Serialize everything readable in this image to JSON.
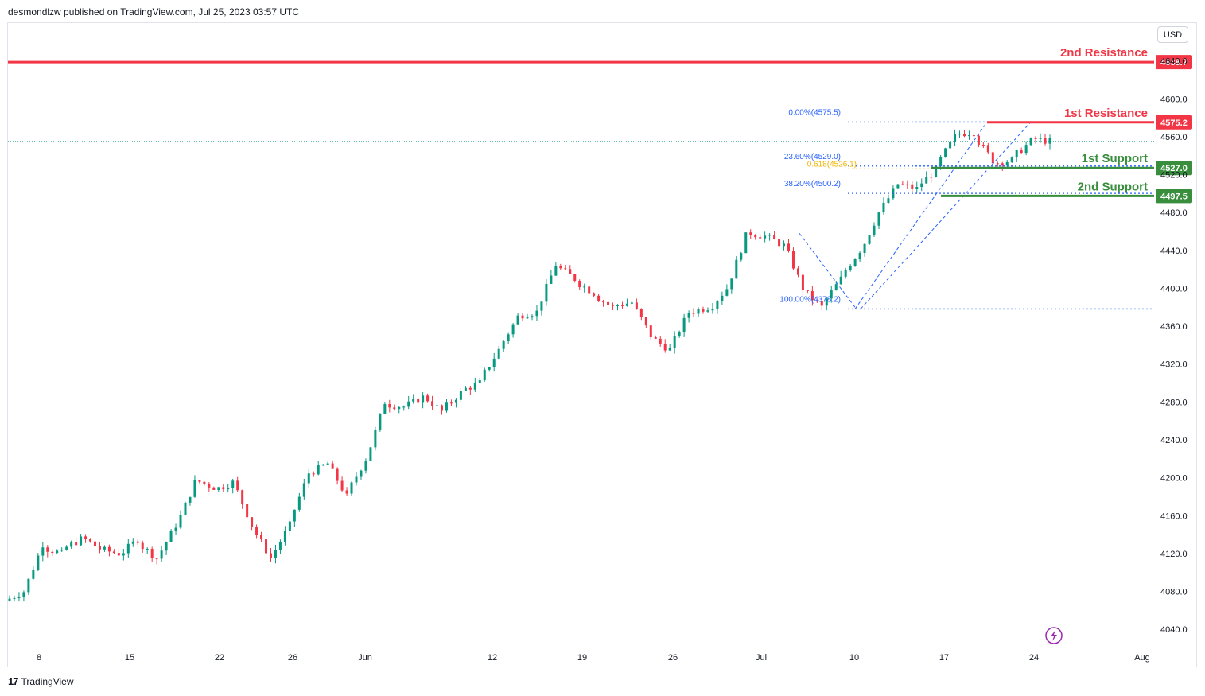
{
  "header": {
    "publisher": "desmondlzw published on TradingView.com, Jul 25, 2023 03:57 UTC"
  },
  "footer": {
    "brand": "TradingView",
    "logo_glyph": "17"
  },
  "currency_button": "USD",
  "colors": {
    "up": "#089981",
    "down": "#f23645",
    "resistance": "#f23645",
    "support": "#388e3c",
    "fib": "#2962ff",
    "fib_golden": "#f0b400"
  },
  "chart_data": {
    "type": "candlestick",
    "y_axis": {
      "min": 4020,
      "max": 4680,
      "ticks": [
        "4040.0",
        "4080.0",
        "4120.0",
        "4160.0",
        "4200.0",
        "4240.0",
        "4280.0",
        "4320.0",
        "4360.0",
        "4400.0",
        "4440.0",
        "4480.0",
        "4520.0",
        "4560.0",
        "4600.0",
        "4640.0"
      ]
    },
    "x_axis": {
      "labels": [
        "8",
        "15",
        "22",
        "26",
        "Jun",
        "12",
        "19",
        "26",
        "Jul",
        "10",
        "17",
        "24",
        "Aug"
      ]
    },
    "levels": [
      {
        "name": "2nd Resistance",
        "value": 4638.7,
        "tag": "4638.7",
        "kind": "resistance"
      },
      {
        "name": "1st Resistance",
        "value": 4575.2,
        "tag": "4575.2",
        "kind": "resistance"
      },
      {
        "name": "1st Support",
        "value": 4527.0,
        "tag": "4527.0",
        "kind": "support"
      },
      {
        "name": "2nd Support",
        "value": 4497.5,
        "tag": "4497.5",
        "kind": "support"
      }
    ],
    "fib_levels": [
      {
        "label": "0.00%(4575.5)",
        "value": 4575.5
      },
      {
        "label": "23.60%(4529.0)",
        "value": 4529.0
      },
      {
        "label": "38.20%(4500.2)",
        "value": 4500.2
      },
      {
        "label": "100.00%(4378.2)",
        "value": 4378.2
      }
    ],
    "fib_golden": {
      "label": "0.618(4526.1)",
      "value": 4526.1
    },
    "last_price": 4555,
    "series": [
      {
        "x": "May 5",
        "v": 4080
      },
      {
        "x": "May 8",
        "v": 4130
      },
      {
        "x": "May 9",
        "v": 4120
      },
      {
        "x": "May 10",
        "v": 4135
      },
      {
        "x": "May 11",
        "v": 4125
      },
      {
        "x": "May 12",
        "v": 4120
      },
      {
        "x": "May 15",
        "v": 4135
      },
      {
        "x": "May 16",
        "v": 4115
      },
      {
        "x": "May 17",
        "v": 4150
      },
      {
        "x": "May 18",
        "v": 4195
      },
      {
        "x": "May 19",
        "v": 4190
      },
      {
        "x": "May 22",
        "v": 4195
      },
      {
        "x": "May 23",
        "v": 4150
      },
      {
        "x": "May 24",
        "v": 4115
      },
      {
        "x": "May 25",
        "v": 4150
      },
      {
        "x": "May 26",
        "v": 4205
      },
      {
        "x": "May 30",
        "v": 4215
      },
      {
        "x": "May 31",
        "v": 4180
      },
      {
        "x": "Jun 1",
        "v": 4220
      },
      {
        "x": "Jun 2",
        "v": 4280
      },
      {
        "x": "Jun 5",
        "v": 4275
      },
      {
        "x": "Jun 6",
        "v": 4285
      },
      {
        "x": "Jun 7",
        "v": 4270
      },
      {
        "x": "Jun 8",
        "v": 4290
      },
      {
        "x": "Jun 9",
        "v": 4300
      },
      {
        "x": "Jun 12",
        "v": 4335
      },
      {
        "x": "Jun 13",
        "v": 4370
      },
      {
        "x": "Jun 14",
        "v": 4375
      },
      {
        "x": "Jun 15",
        "v": 4425
      },
      {
        "x": "Jun 16",
        "v": 4410
      },
      {
        "x": "Jun 20",
        "v": 4395
      },
      {
        "x": "Jun 21",
        "v": 4380
      },
      {
        "x": "Jun 22",
        "v": 4385
      },
      {
        "x": "Jun 23",
        "v": 4350
      },
      {
        "x": "Jun 26",
        "v": 4335
      },
      {
        "x": "Jun 27",
        "v": 4375
      },
      {
        "x": "Jun 28",
        "v": 4380
      },
      {
        "x": "Jun 29",
        "v": 4400
      },
      {
        "x": "Jun 30",
        "v": 4455
      },
      {
        "x": "Jul 3",
        "v": 4455
      },
      {
        "x": "Jul 5",
        "v": 4445
      },
      {
        "x": "Jul 6",
        "v": 4400
      },
      {
        "x": "Jul 7",
        "v": 4380
      },
      {
        "x": "Jul 10",
        "v": 4410
      },
      {
        "x": "Jul 11",
        "v": 4440
      },
      {
        "x": "Jul 12",
        "v": 4480
      },
      {
        "x": "Jul 13",
        "v": 4510
      },
      {
        "x": "Jul 14",
        "v": 4505
      },
      {
        "x": "Jul 17",
        "v": 4525
      },
      {
        "x": "Jul 18",
        "v": 4560
      },
      {
        "x": "Jul 19",
        "v": 4565
      },
      {
        "x": "Jul 20",
        "v": 4535
      },
      {
        "x": "Jul 21",
        "v": 4535
      },
      {
        "x": "Jul 24",
        "v": 4555
      },
      {
        "x": "Jul 25",
        "v": 4555
      }
    ]
  }
}
